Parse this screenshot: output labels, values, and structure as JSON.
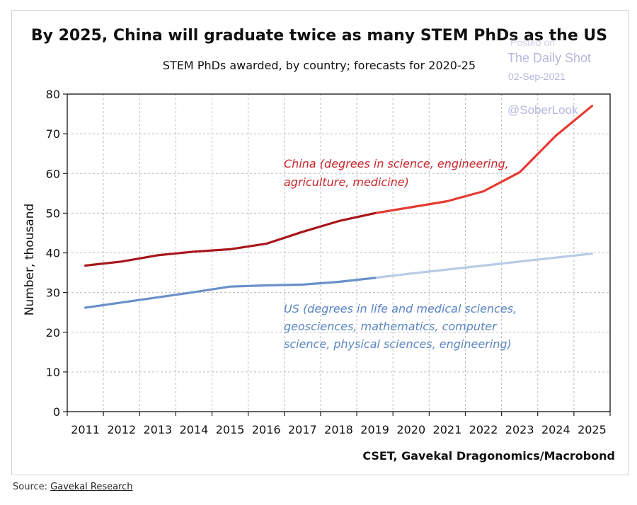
{
  "chart_data": {
    "type": "line",
    "title": "By 2025, China will graduate twice as many STEM PhDs as the US",
    "subtitle": "STEM PhDs awarded, by country; forecasts for 2020-25",
    "ylabel": "Number, thousand",
    "xlabel": "",
    "ylim": [
      0,
      80
    ],
    "yticks": [
      "0",
      "10",
      "20",
      "30",
      "40",
      "50",
      "60",
      "70",
      "80"
    ],
    "categories": [
      "2011",
      "2012",
      "2013",
      "2014",
      "2015",
      "2016",
      "2017",
      "2018",
      "2019",
      "2020",
      "2021",
      "2022",
      "2023",
      "2024",
      "2025"
    ],
    "grid": true,
    "series": [
      {
        "name": "China (degrees in science, engineering, agriculture, medicine)",
        "values": [
          36.8,
          37.8,
          39.4,
          40.3,
          40.9,
          42.3,
          45.3,
          48.0,
          50.0,
          51.5,
          53.0,
          55.5,
          60.3,
          69.5,
          77.0
        ],
        "forecast_from": "2019",
        "color": "#a8161b",
        "forecast_color": "#e53b32"
      },
      {
        "name": "US (degrees in life and medical sciences, geosciences, mathematics, computer science, physical sciences, engineering)",
        "values": [
          26.2,
          27.5,
          28.8,
          30.1,
          31.5,
          31.8,
          32.0,
          32.7,
          33.7,
          34.8,
          35.8,
          36.8,
          37.8,
          38.8,
          39.8
        ],
        "forecast_from": "2019",
        "color": "#6a90c9",
        "forecast_color": "#b7cbe6"
      }
    ],
    "annotations": {
      "china_line1": "China (degrees in science, engineering,",
      "china_line2": "agriculture, medicine)",
      "us_line1": "US (degrees in life and medical sciences,",
      "us_line2": "geosciences, mathematics, computer",
      "us_line3": "science, physical sciences, engineering)"
    },
    "credit": "CSET, Gavekal Dragonomics/Macrobond"
  },
  "watermark": {
    "posted_on": "Posted on",
    "publication": "The Daily Shot",
    "date": "02-Sep-2021",
    "handle": "@SoberLook"
  },
  "source": {
    "prefix": "Source: ",
    "link_text": "Gavekal Research"
  }
}
